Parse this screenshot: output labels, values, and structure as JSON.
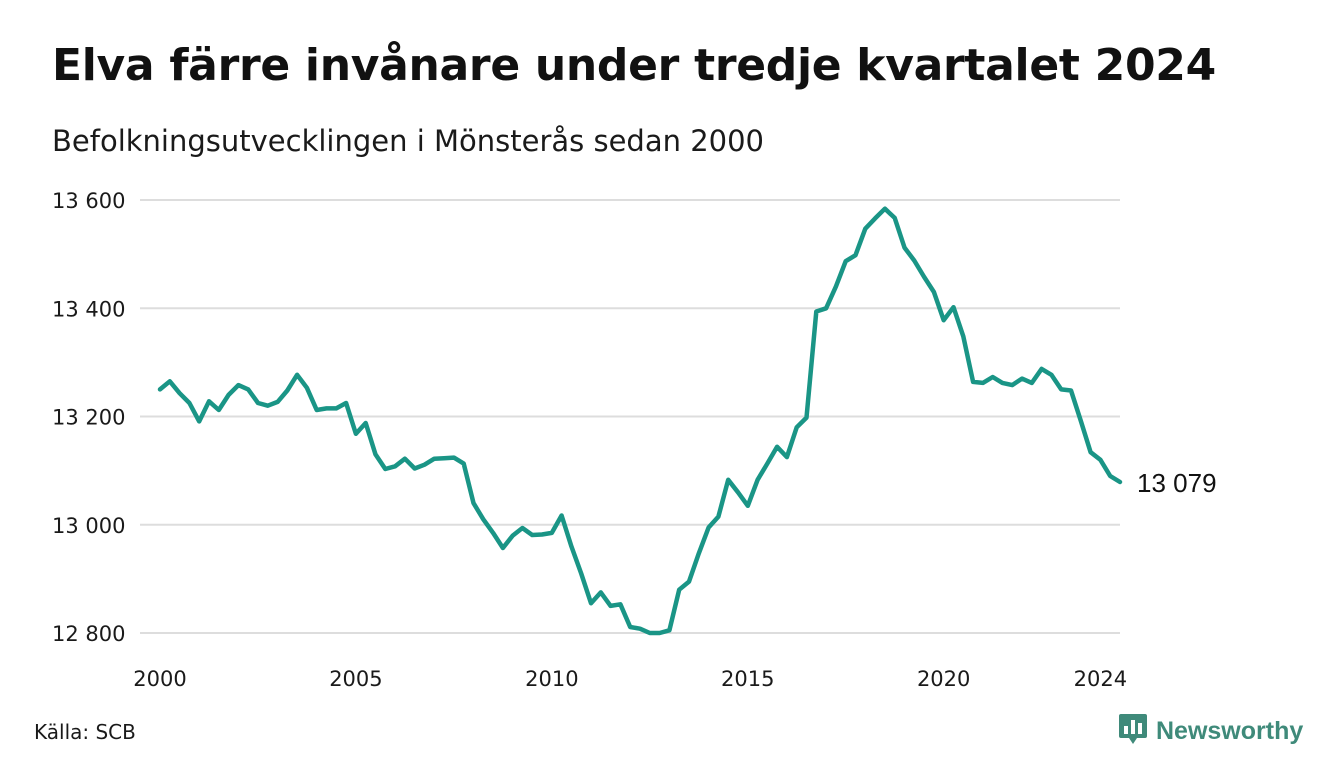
{
  "header": {
    "title": "Elva färre invånare under tredje kvartalet 2024",
    "subtitle": "Befolkningsutvecklingen i Mönsterås sedan 2000"
  },
  "footer": {
    "source": "Källa: SCB",
    "brand": "Newsworthy",
    "brand_icon": "newsworthy-bar-chart-icon"
  },
  "colors": {
    "line": "#1a9586",
    "grid": "#dddddd",
    "brand": "#3f8a7a"
  },
  "chart_data": {
    "type": "line",
    "title": "Elva färre invånare under tredje kvartalet 2024",
    "subtitle": "Befolkningsutvecklingen i Mönsterås sedan 2000",
    "xlabel": "",
    "ylabel": "",
    "x_ticks": [
      "2000",
      "2005",
      "2010",
      "2015",
      "2020",
      "2024"
    ],
    "y_ticks": [
      {
        "value": 12800,
        "label": "12 800"
      },
      {
        "value": 13000,
        "label": "13 000"
      },
      {
        "value": 13200,
        "label": "13 200"
      },
      {
        "value": 13400,
        "label": "13 400"
      },
      {
        "value": 13600,
        "label": "13 600"
      }
    ],
    "xlim": [
      "2000 kv1",
      "2024 kv3"
    ],
    "ylim": [
      12800,
      13600
    ],
    "grid": "horizontal",
    "legend": "none",
    "end_label": "13 079",
    "series": [
      {
        "x": [
          "2000 kv1",
          "2000 kv2",
          "2000 kv3",
          "2000 kv4",
          "2001 kv1",
          "2001 kv2",
          "2001 kv3",
          "2001 kv4",
          "2002 kv1",
          "2002 kv2",
          "2002 kv3",
          "2002 kv4",
          "2003 kv1",
          "2003 kv2",
          "2003 kv3",
          "2003 kv4",
          "2004 kv1",
          "2004 kv2",
          "2004 kv3",
          "2004 kv4",
          "2005 kv1",
          "2005 kv2",
          "2005 kv3",
          "2005 kv4",
          "2006 kv1",
          "2006 kv2",
          "2006 kv3",
          "2006 kv4",
          "2007 kv1",
          "2007 kv2",
          "2007 kv3",
          "2007 kv4",
          "2008 kv1",
          "2008 kv2",
          "2008 kv3",
          "2008 kv4",
          "2009 kv1",
          "2009 kv2",
          "2009 kv3",
          "2009 kv4",
          "2010 kv1",
          "2010 kv2",
          "2010 kv3",
          "2010 kv4",
          "2011 kv1",
          "2011 kv2",
          "2011 kv3",
          "2011 kv4",
          "2012 kv1",
          "2012 kv2",
          "2012 kv3",
          "2012 kv4",
          "2013 kv1",
          "2013 kv2",
          "2013 kv3",
          "2013 kv4",
          "2014 kv1",
          "2014 kv2",
          "2014 kv3",
          "2014 kv4",
          "2015 kv1",
          "2015 kv2",
          "2015 kv3",
          "2015 kv4",
          "2016 kv1",
          "2016 kv2",
          "2016 kv3",
          "2016 kv4",
          "2017 kv1",
          "2017 kv2",
          "2017 kv3",
          "2017 kv4",
          "2018 kv1",
          "2018 kv2",
          "2018 kv3",
          "2018 kv4",
          "2019 kv1",
          "2019 kv2",
          "2019 kv3",
          "2019 kv4",
          "2020 kv1",
          "2020 kv2",
          "2020 kv3",
          "2020 kv4",
          "2021 kv1",
          "2021 kv2",
          "2021 kv3",
          "2021 kv4",
          "2022 kv1",
          "2022 kv2",
          "2022 kv3",
          "2022 kv4",
          "2023 kv1",
          "2023 kv2",
          "2023 kv3",
          "2023 kv4",
          "2024 kv1",
          "2024 kv2",
          "2024 kv3"
        ],
        "values": [
          13250,
          13265,
          13243,
          13225,
          13191,
          13228,
          13212,
          13240,
          13258,
          13250,
          13225,
          13220,
          13227,
          13248,
          13277,
          13253,
          13212,
          13215,
          13215,
          13225,
          13168,
          13188,
          13130,
          13103,
          13108,
          13122,
          13104,
          13111,
          13122,
          13123,
          13124,
          13113,
          13040,
          13010,
          12985,
          12957,
          12980,
          12994,
          12981,
          12982,
          12985,
          13017,
          12960,
          12910,
          12855,
          12875,
          12850,
          12853,
          12811,
          12808,
          12800,
          12800,
          12805,
          12880,
          12895,
          12947,
          12995,
          13015,
          13083,
          13060,
          13035,
          13083,
          13113,
          13144,
          13125,
          13180,
          13198,
          13394,
          13400,
          13440,
          13487,
          13498,
          13547,
          13566,
          13584,
          13567,
          13512,
          13488,
          13458,
          13430,
          13378,
          13402,
          13348,
          13264,
          13262,
          13273,
          13262,
          13258,
          13270,
          13262,
          13288,
          13277,
          13250,
          13248,
          13192,
          13134,
          13120,
          13090,
          13079
        ]
      }
    ]
  }
}
